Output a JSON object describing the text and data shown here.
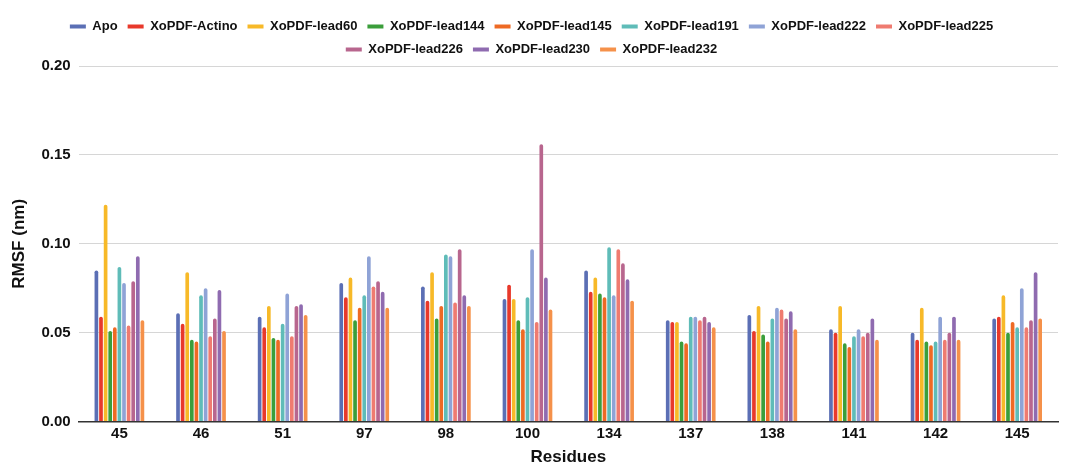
{
  "chart_data": {
    "type": "bar",
    "xlabel": "Residues",
    "ylabel": "RMSF (nm)",
    "categories": [
      "45",
      "46",
      "51",
      "97",
      "98",
      "100",
      "134",
      "137",
      "138",
      "141",
      "142",
      "145"
    ],
    "ylim": [
      0,
      0.2
    ],
    "yticks": [
      {
        "value": 0,
        "label": "0.00"
      },
      {
        "value": 0.05,
        "label": "0.05"
      },
      {
        "value": 0.1,
        "label": "0.10"
      },
      {
        "value": 0.15,
        "label": "0.15"
      },
      {
        "value": 0.2,
        "label": "0.20"
      }
    ],
    "grid": "y",
    "legend": "top",
    "series": [
      {
        "name": "Apo",
        "color": "#5b6fb5",
        "values": [
          0.085,
          0.061,
          0.059,
          0.078,
          0.076,
          0.069,
          0.085,
          0.057,
          0.06,
          0.052,
          0.05,
          0.058
        ]
      },
      {
        "name": "XoPDF-Actino",
        "color": "#e8392b",
        "values": [
          0.059,
          0.055,
          0.053,
          0.07,
          0.068,
          0.077,
          0.073,
          0.056,
          0.051,
          0.05,
          0.046,
          0.059
        ]
      },
      {
        "name": "XoPDF-lead60",
        "color": "#f7b928",
        "values": [
          0.122,
          0.084,
          0.065,
          0.081,
          0.084,
          0.069,
          0.081,
          0.056,
          0.065,
          0.065,
          0.064,
          0.071
        ]
      },
      {
        "name": "XoPDF-lead144",
        "color": "#3b9e3b",
        "values": [
          0.051,
          0.046,
          0.047,
          0.057,
          0.058,
          0.057,
          0.072,
          0.045,
          0.049,
          0.044,
          0.045,
          0.05
        ]
      },
      {
        "name": "XoPDF-lead145",
        "color": "#ee6a24",
        "values": [
          0.053,
          0.045,
          0.046,
          0.064,
          0.065,
          0.052,
          0.07,
          0.044,
          0.045,
          0.042,
          0.043,
          0.056
        ]
      },
      {
        "name": "XoPDF-lead191",
        "color": "#5fbcb8",
        "values": [
          0.087,
          0.071,
          0.055,
          0.071,
          0.094,
          0.07,
          0.098,
          0.059,
          0.058,
          0.048,
          0.045,
          0.053
        ]
      },
      {
        "name": "XoPDF-lead222",
        "color": "#8fa3d6",
        "values": [
          0.078,
          0.075,
          0.072,
          0.093,
          0.093,
          0.097,
          0.071,
          0.059,
          0.064,
          0.052,
          0.059,
          0.075
        ]
      },
      {
        "name": "XoPDF-lead225",
        "color": "#ef7b70",
        "values": [
          0.054,
          0.048,
          0.048,
          0.076,
          0.067,
          0.056,
          0.097,
          0.057,
          0.063,
          0.048,
          0.046,
          0.053
        ]
      },
      {
        "name": "XoPDF-lead226",
        "color": "#b8668e",
        "values": [
          0.079,
          0.058,
          0.065,
          0.079,
          0.097,
          0.156,
          0.089,
          0.059,
          0.058,
          0.05,
          0.05,
          0.057
        ]
      },
      {
        "name": "XoPDF-lead230",
        "color": "#8f6bb0",
        "values": [
          0.093,
          0.074,
          0.066,
          0.073,
          0.071,
          0.081,
          0.08,
          0.056,
          0.062,
          0.058,
          0.059,
          0.084
        ]
      },
      {
        "name": "XoPDF-lead232",
        "color": "#f5914a",
        "values": [
          0.057,
          0.051,
          0.06,
          0.064,
          0.065,
          0.063,
          0.068,
          0.053,
          0.052,
          0.046,
          0.046,
          0.058
        ]
      }
    ]
  }
}
